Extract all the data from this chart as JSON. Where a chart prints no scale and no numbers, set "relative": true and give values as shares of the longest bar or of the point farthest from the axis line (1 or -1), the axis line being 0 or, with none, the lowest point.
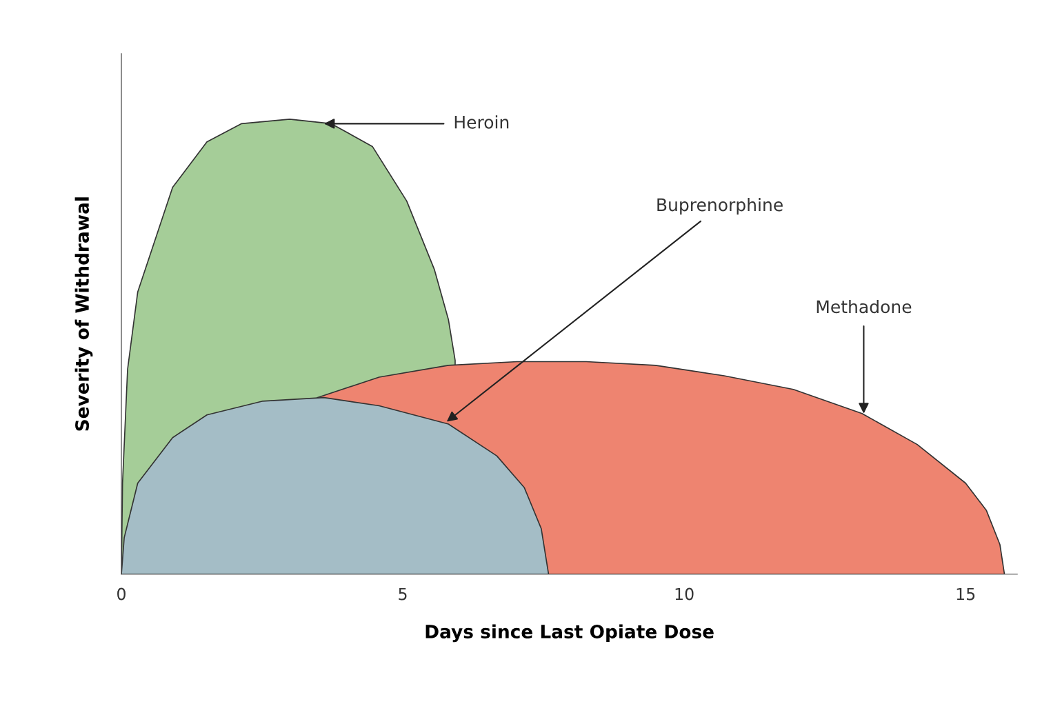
{
  "chart_data": {
    "type": "area",
    "relative": true,
    "xlabel": "Days since Last Opiate Dose",
    "ylabel": "Severity of Withdrawal",
    "xlim": [
      0,
      15.92
    ],
    "xticks": [
      0,
      5,
      10,
      15
    ],
    "grid": false,
    "series": [
      {
        "color": "#a5cd98",
        "x": [
          0,
          0.02,
          0.11,
          0.29,
          0.91,
          1.52,
          2.13,
          2.99,
          3.73,
          4.46,
          5.07,
          5.56,
          5.81,
          5.93
        ],
        "values": [
          0,
          0.2,
          0.45,
          0.62,
          0.85,
          0.95,
          0.99,
          1.0,
          0.99,
          0.94,
          0.82,
          0.67,
          0.56,
          0.47
        ]
      },
      {
        "color": "#ee8470",
        "x": [
          3.48,
          4.58,
          5.81,
          7.03,
          8.26,
          9.49,
          10.71,
          11.94,
          13.16,
          14.14,
          15.0,
          15.37,
          15.61,
          15.69
        ],
        "values": [
          0.388,
          0.433,
          0.459,
          0.467,
          0.467,
          0.459,
          0.436,
          0.406,
          0.353,
          0.285,
          0.2,
          0.14,
          0.065,
          0
        ]
      },
      {
        "color": "#a4bdc6",
        "x": [
          0,
          0.05,
          0.29,
          0.91,
          1.52,
          2.5,
          3.6,
          4.58,
          5.81,
          6.67,
          7.16,
          7.46,
          7.59
        ],
        "values": [
          0,
          0.08,
          0.2,
          0.3,
          0.35,
          0.38,
          0.388,
          0.37,
          0.33,
          0.26,
          0.19,
          0.1,
          0
        ]
      }
    ],
    "annotations": [
      {
        "text": "Heroin",
        "x": 3.6,
        "y": 0.99
      },
      {
        "text": "Buprenorphine",
        "x": 5.78,
        "y": 0.335
      },
      {
        "text": "Methadone",
        "x": 13.19,
        "y": 0.353
      }
    ]
  }
}
